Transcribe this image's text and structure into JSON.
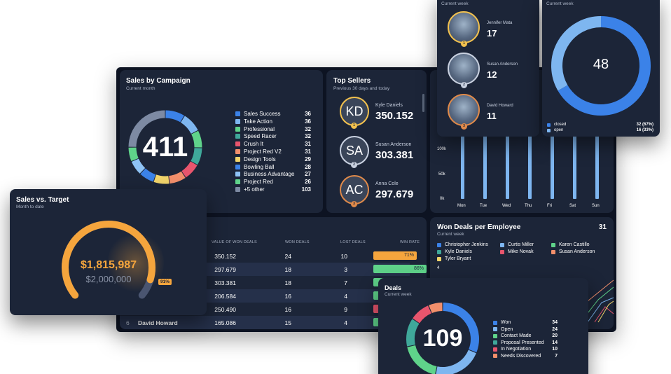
{
  "colors": {
    "card": "#1c2538",
    "frame": "#0d1322",
    "blue": "#3b82e8",
    "light_blue": "#7eb6f0",
    "green": "#5fd38a",
    "orange": "#f5a53d",
    "gold": "#f2c14e",
    "red": "#e8556d",
    "teal": "#3fa89a"
  },
  "campaign": {
    "title": "Sales by Campaign",
    "subtitle": "Current month",
    "total": "411",
    "items": [
      {
        "label": "Sales Success",
        "value": "36",
        "color": "#3b82e8"
      },
      {
        "label": "Take Action",
        "value": "36",
        "color": "#7eb6f0"
      },
      {
        "label": "Professional",
        "value": "32",
        "color": "#5fd38a"
      },
      {
        "label": "Speed Racer",
        "value": "32",
        "color": "#3fa89a"
      },
      {
        "label": "Crush It",
        "value": "31",
        "color": "#e8556d"
      },
      {
        "label": "Project Red V2",
        "value": "31",
        "color": "#f28f6b"
      },
      {
        "label": "Design Tools",
        "value": "29",
        "color": "#f2d56b"
      },
      {
        "label": "Bowling Ball",
        "value": "28",
        "color": "#3b82e8"
      },
      {
        "label": "Business Advantage",
        "value": "27",
        "color": "#8fc3f5"
      },
      {
        "label": "Project Red",
        "value": "26",
        "color": "#5fd38a"
      },
      {
        "label": "+5 other",
        "value": "103",
        "color": "#7d8aa3"
      }
    ]
  },
  "top_sellers": {
    "title": "Top Sellers",
    "subtitle": "Previous 30 days and today",
    "sellers": [
      {
        "initials": "KD",
        "name": "Kyle Daniels",
        "value": "350.152",
        "rank": "1",
        "ring": "#f2c14e"
      },
      {
        "initials": "SA",
        "name": "Susan Anderson",
        "value": "303.381",
        "rank": "2",
        "ring": "#c9d1e0"
      },
      {
        "initials": "AC",
        "name": "Anna Cole",
        "value": "297.679",
        "rank": "3",
        "ring": "#e08a4a"
      }
    ]
  },
  "weekly_top": {
    "subtitle": "Current week",
    "people": [
      {
        "name": "Jennifer Mata",
        "value": "17",
        "rank": "1"
      },
      {
        "name": "Susan Anderson",
        "value": "12",
        "rank": "2"
      },
      {
        "name": "David Howard",
        "value": "11",
        "rank": "3"
      }
    ]
  },
  "deal_status": {
    "subtitle": "Current week",
    "total": "48",
    "legend": [
      {
        "label": "closed",
        "value": "32 (67%)",
        "color": "#3b82e8"
      },
      {
        "label": "open",
        "value": "16 (33%)",
        "color": "#7eb6f0"
      }
    ]
  },
  "weekly_bars": {
    "y_ticks": [
      "100k",
      "50k",
      "0k"
    ],
    "days": [
      "Mon",
      "Tue",
      "Wed",
      "Thu",
      "Fri",
      "Sat",
      "Sun"
    ]
  },
  "sales_target": {
    "title": "Sales vs. Target",
    "subtitle": "Month to date",
    "value": "$1,815,987",
    "target": "$2,000,000",
    "percent": "91%",
    "progress": 0.91
  },
  "leaderboard": {
    "headers": [
      "VALUE OF WON DEALS",
      "WON DEALS",
      "LOST DEALS",
      "WIN RATE"
    ],
    "rows": [
      {
        "rank": "",
        "name": "",
        "value": "350.152",
        "won": "24",
        "lost": "10",
        "rate": "71%",
        "rate_val": 0.71,
        "color": "#f5a53d"
      },
      {
        "rank": "",
        "name": "",
        "value": "297.679",
        "won": "18",
        "lost": "3",
        "rate": "86%",
        "rate_val": 0.86,
        "color": "#5fd38a"
      },
      {
        "rank": "",
        "name": "",
        "value": "303.381",
        "won": "18",
        "lost": "7",
        "rate": "",
        "rate_val": 0.72,
        "color": "#5fd38a"
      },
      {
        "rank": "",
        "name": "",
        "value": "206.584",
        "won": "16",
        "lost": "4",
        "rate": "",
        "rate_val": 0.8,
        "color": "#5fd38a"
      },
      {
        "rank": "",
        "name": "",
        "value": "250.490",
        "won": "16",
        "lost": "9",
        "rate": "",
        "rate_val": 0.64,
        "color": "#e8556d"
      },
      {
        "rank": "6",
        "name": "David Howard",
        "value": "165.086",
        "won": "15",
        "lost": "4",
        "rate": "",
        "rate_val": 0.79,
        "color": "#5fd38a"
      }
    ]
  },
  "won_deals_employee": {
    "title": "Won Deals per Employee",
    "total": "31",
    "subtitle": "Current week",
    "y_tick": "4",
    "legend": [
      {
        "label": "Christopher Jenkins",
        "color": "#3b82e8"
      },
      {
        "label": "Curtis Miller",
        "color": "#7eb6f0"
      },
      {
        "label": "Karen Castillo",
        "color": "#5fd38a"
      },
      {
        "label": "Kyle Daniels",
        "color": "#3fa89a"
      },
      {
        "label": "Mike Novak",
        "color": "#e8556d"
      },
      {
        "label": "Susan Anderson",
        "color": "#f28f6b"
      },
      {
        "label": "Tyler Bryant",
        "color": "#f2d56b"
      }
    ]
  },
  "deals": {
    "title": "Deals",
    "subtitle": "Current week",
    "total": "109",
    "items": [
      {
        "label": "Won",
        "value": "34",
        "color": "#3b82e8"
      },
      {
        "label": "Open",
        "value": "24",
        "color": "#7eb6f0"
      },
      {
        "label": "Contact Made",
        "value": "20",
        "color": "#5fd38a"
      },
      {
        "label": "Proposal Presented",
        "value": "14",
        "color": "#3fa89a"
      },
      {
        "label": "In Negotiation",
        "value": "10",
        "color": "#e8556d"
      },
      {
        "label": "Needs Discovered",
        "value": "7",
        "color": "#f28f6b"
      }
    ]
  }
}
